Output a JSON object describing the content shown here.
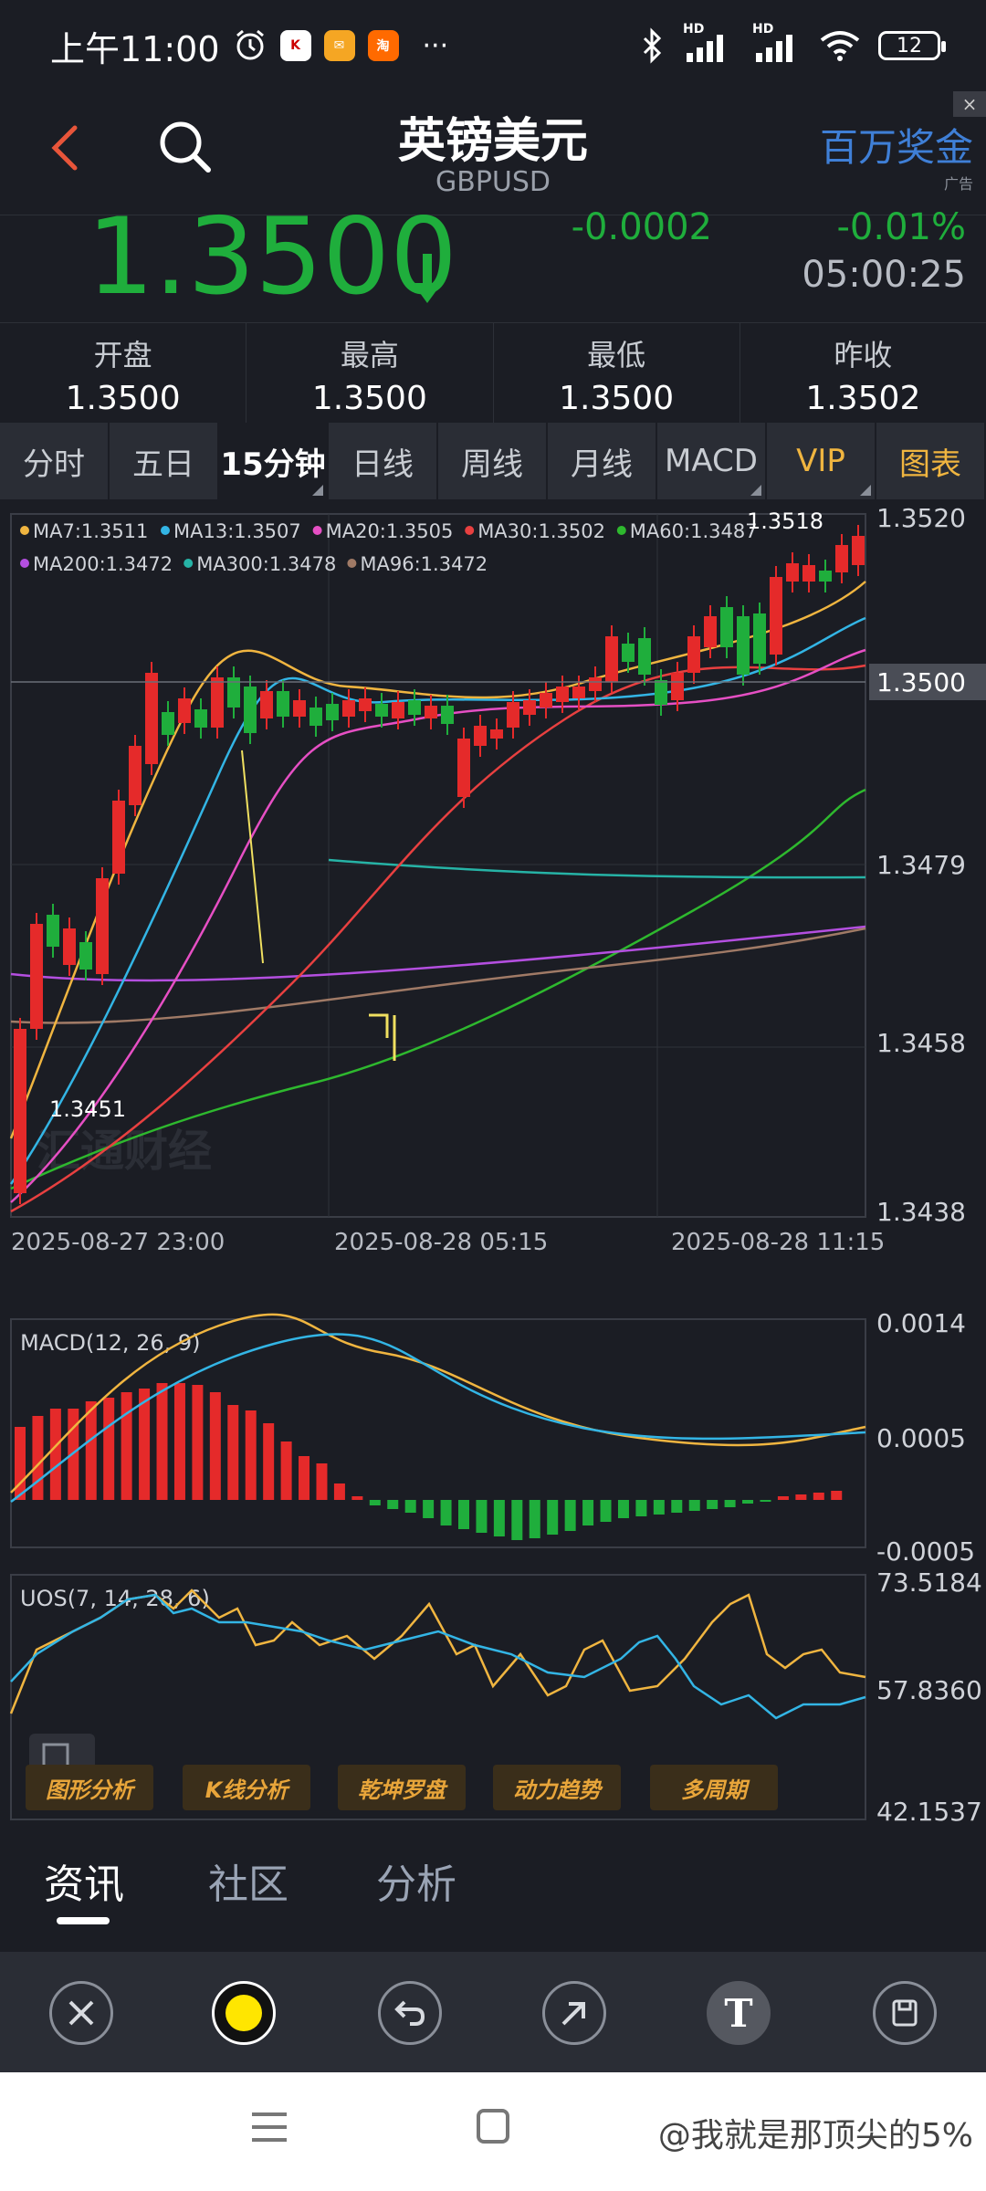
{
  "status_bar": {
    "time": "上午11:00",
    "battery": "12",
    "hd1": "HD",
    "hd2": "HD",
    "more": "···"
  },
  "header": {
    "title": "英镑美元",
    "subtitle": "GBPUSD",
    "ad_text": "百万奖金",
    "ad_label": "广告",
    "ad_close": "×"
  },
  "price": {
    "value": "1.3500",
    "change": "-0.0002",
    "change_pct": "-0.01%",
    "time": "05:00:25"
  },
  "ohlc": [
    {
      "label": "开盘",
      "value": "1.3500"
    },
    {
      "label": "最高",
      "value": "1.3500"
    },
    {
      "label": "最低",
      "value": "1.3500"
    },
    {
      "label": "昨收",
      "value": "1.3502"
    }
  ],
  "tabs": [
    "分时",
    "五日",
    "15分钟",
    "日线",
    "周线",
    "月线",
    "MACD",
    "VIP",
    "图表"
  ],
  "chart": {
    "ma_legend_row1": [
      {
        "label": "MA7:1.3511",
        "color": "#f0b540"
      },
      {
        "label": "MA13:1.3507",
        "color": "#33b5e5"
      },
      {
        "label": "MA20:1.3505",
        "color": "#e64fc4"
      },
      {
        "label": "MA30:1.3502",
        "color": "#e84040"
      },
      {
        "label": "MA60:1.3487",
        "color": "#2eb82e"
      }
    ],
    "ma_legend_row2": [
      {
        "label": "MA200:1.3472",
        "color": "#b44fe0"
      },
      {
        "label": "MA300:1.3478",
        "color": "#26b3a6"
      },
      {
        "label": "MA96:1.3472",
        "color": "#a07a66"
      }
    ],
    "y_labels": [
      "1.3520",
      "1.3500",
      "1.3479",
      "1.3458",
      "1.3438"
    ],
    "high_label": "1.3518",
    "low_label": "1.3451",
    "x_labels": [
      "2025-08-27 23:00",
      "2025-08-28 05:15",
      "2025-08-28 11:15"
    ],
    "watermark": "汇通财经"
  },
  "tools": [
    "图形分析",
    "K线分析",
    "乾坤罗盘",
    "动力趋势",
    "多周期"
  ],
  "macd": {
    "title": "MACD(12, 26, 9)",
    "y_labels": [
      "0.0014",
      "0.0005",
      "-0.0005"
    ]
  },
  "uos": {
    "title": "UOS(7, 14, 28, 6)",
    "y_labels": [
      "73.5184",
      "57.8360",
      "42.1537"
    ]
  },
  "news_tabs": [
    "资讯",
    "社区",
    "分析"
  ],
  "draw_tools": [
    "close-icon",
    "color-icon",
    "undo-icon",
    "arrow-icon",
    "text-icon",
    "save-icon"
  ],
  "watermark": "@我就是那顶尖的5%"
}
